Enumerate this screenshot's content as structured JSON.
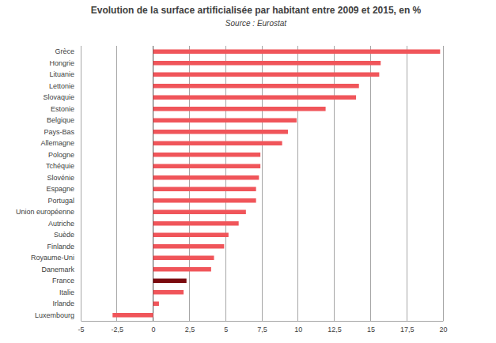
{
  "chart_data": {
    "type": "bar",
    "orientation": "horizontal",
    "title": "Evolution de la surface artificialisée par habitant entre 2009 et 2015, en %",
    "subtitle": "Source : Eurostat",
    "categories": [
      "Grèce",
      "Hongrie",
      "Lituanie",
      "Lettonie",
      "Slovaquie",
      "Estonie",
      "Belgique",
      "Pays-Bas",
      "Allemagne",
      "Pologne",
      "Tchéquie",
      "Slovénie",
      "Espagne",
      "Portugal",
      "Union européenne",
      "Autriche",
      "Suède",
      "Finlande",
      "Royaume-Uni",
      "Danemark",
      "France",
      "Italie",
      "Irlande",
      "Luxembourg"
    ],
    "values": [
      19.8,
      15.7,
      15.6,
      14.2,
      14.0,
      11.9,
      9.9,
      9.3,
      8.9,
      7.4,
      7.4,
      7.3,
      7.1,
      7.1,
      6.4,
      5.9,
      5.2,
      4.9,
      4.2,
      4.0,
      2.3,
      2.1,
      0.4,
      -2.8
    ],
    "colors": [
      "#f0555a",
      "#f0555a",
      "#f0555a",
      "#f0555a",
      "#f0555a",
      "#f0555a",
      "#f0555a",
      "#f0555a",
      "#f0555a",
      "#f0555a",
      "#f0555a",
      "#f0555a",
      "#f0555a",
      "#f0555a",
      "#f0555a",
      "#f0555a",
      "#f0555a",
      "#f0555a",
      "#f0555a",
      "#f0555a",
      "#7a0a0e",
      "#f0555a",
      "#f0555a",
      "#f0555a"
    ],
    "xlim": [
      -5,
      20
    ],
    "xticks": [
      -5,
      {
        "value": -2.5,
        "label": "-2,5"
      },
      0,
      {
        "value": 2.5,
        "label": "2,5"
      },
      5,
      {
        "value": 7.5,
        "label": "7,5"
      },
      10,
      {
        "value": 12.5,
        "label": "12,5"
      },
      15,
      {
        "value": 17.5,
        "label": "17,5"
      },
      20
    ],
    "grid": true
  }
}
